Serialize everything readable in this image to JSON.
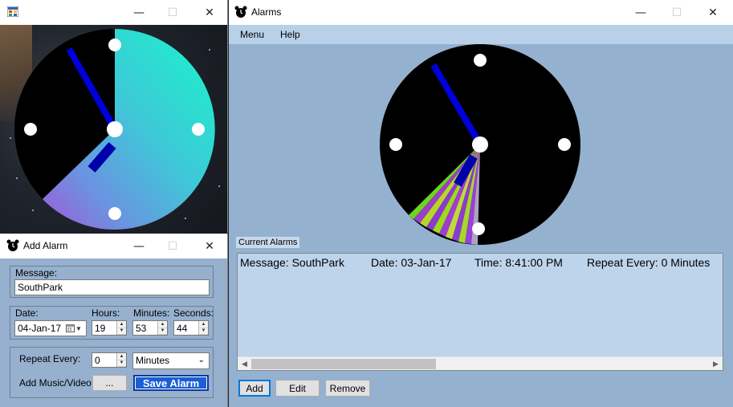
{
  "clock_window": {
    "title": "",
    "controls": {
      "minimize": "—",
      "maximize": "☐",
      "close": "✕"
    }
  },
  "add_alarm_window": {
    "title": "Add Alarm",
    "controls": {
      "minimize": "—",
      "maximize": "☐",
      "close": "✕"
    },
    "message_label": "Message:",
    "message_value": "SouthPark",
    "date_label": "Date:",
    "date_value": "04-Jan-17",
    "hours_label": "Hours:",
    "hours_value": "19",
    "minutes_label": "Minutes:",
    "minutes_value": "53",
    "seconds_label": "Seconds:",
    "seconds_value": "44",
    "repeat_label": "Repeat Every:",
    "repeat_value": "0",
    "repeat_unit": "Minutes",
    "music_label": "Add Music/Video:",
    "browse_button": "...",
    "save_button": "Save Alarm"
  },
  "alarms_window": {
    "title": "Alarms",
    "controls": {
      "minimize": "—",
      "maximize": "☐",
      "close": "✕"
    },
    "menu": [
      "Menu",
      "Help"
    ],
    "current_alarms_label": "Current Alarms",
    "alarms": [
      {
        "message": "Message: SouthPark",
        "date": "Date: 03-Jan-17",
        "time": "Time: 8:41:00 PM",
        "repeat": "Repeat Every: 0 Minutes"
      }
    ],
    "buttons": {
      "add": "Add",
      "edit": "Edit",
      "remove": "Remove"
    }
  },
  "colors": {
    "form_bg": "#96b0ce",
    "menubar": "#b8d0e8",
    "list_bg": "#bed4eb",
    "hand": "#0000dd",
    "save_button": "#1a5fd6"
  }
}
